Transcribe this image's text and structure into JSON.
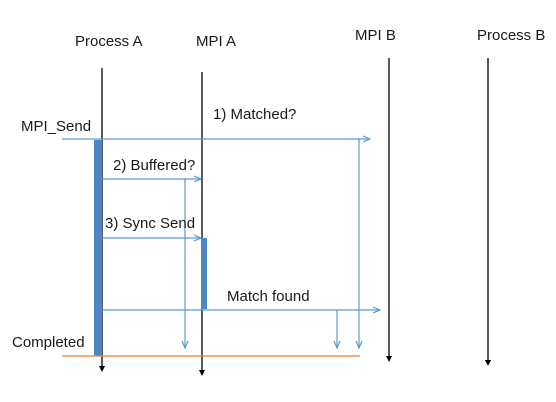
{
  "lanes": {
    "process_a": "Process A",
    "mpi_a": "MPI A",
    "mpi_b": "MPI B",
    "process_b": "Process B"
  },
  "messages": {
    "mpi_send": "MPI_Send",
    "matched": "1) Matched?",
    "buffered": "2) Buffered?",
    "sync_send": "3) Sync Send",
    "match_found": "Match found",
    "completed": "Completed"
  },
  "colors": {
    "lifeline": "#000000",
    "arrow": "#5b9bd5",
    "activation": "#4a86c8",
    "completion_line": "#ed7d31",
    "text": "#1a1a1a"
  }
}
